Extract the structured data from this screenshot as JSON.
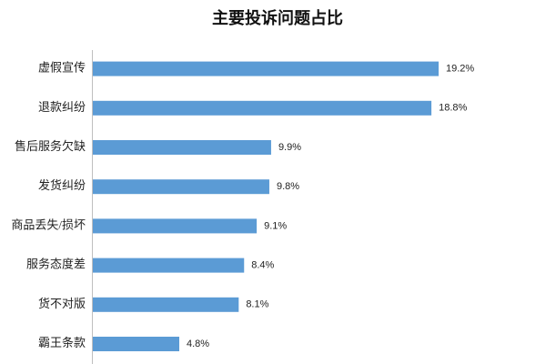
{
  "chart_data": {
    "type": "hbar",
    "title": "主要投诉问题占比",
    "categories": [
      "虚假宣传",
      "退款纠纷",
      "售后服务欠缺",
      "发货纠纷",
      "商品丢失/损坏",
      "服务态度差",
      "货不对版",
      "霸王条款"
    ],
    "values": [
      19.2,
      18.8,
      9.9,
      9.8,
      9.1,
      8.4,
      8.1,
      4.8
    ],
    "value_labels": [
      "19.2%",
      "18.8%",
      "9.9%",
      "9.8%",
      "9.1%",
      "8.4%",
      "8.1%",
      "4.8%"
    ],
    "color": "#5b9bd5"
  }
}
